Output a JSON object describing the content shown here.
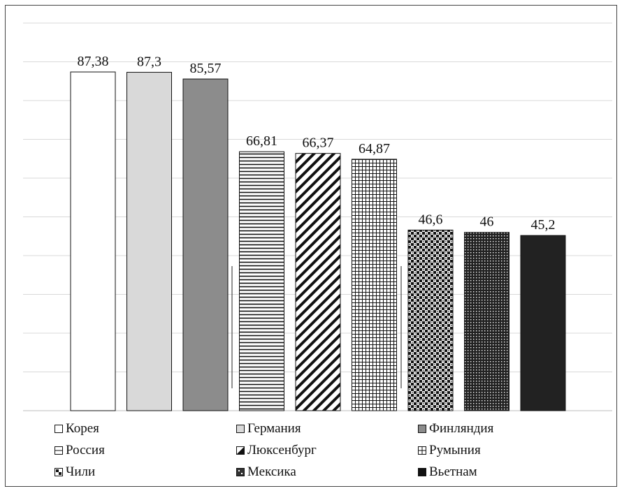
{
  "chart_data": {
    "type": "bar",
    "title": "",
    "xlabel": "",
    "ylabel": "",
    "ylim": [
      0,
      100
    ],
    "grid": true,
    "legend_position": "bottom",
    "categories": [
      "Корея",
      "Германия",
      "Финляндия",
      "Россия",
      "Люксенбург",
      "Румыния",
      "Чили",
      "Мексика",
      "Вьетнам"
    ],
    "values": [
      87.38,
      87.3,
      85.57,
      66.81,
      66.37,
      64.87,
      46.6,
      46,
      45.2
    ],
    "value_labels": [
      "87,38",
      "87,3",
      "85,57",
      "66,81",
      "66,37",
      "64,87",
      "46,6",
      "46",
      "45,2"
    ],
    "series_styles": [
      "white",
      "light-gray",
      "gray",
      "horizontal-lines",
      "diagonal-lines",
      "grid",
      "checker",
      "dots",
      "black"
    ]
  },
  "legend": [
    "Корея",
    "Германия",
    "Финляндия",
    "Россия",
    "Люксенбург",
    "Румыния",
    "Чили",
    "Мексика",
    "Вьетнам"
  ]
}
